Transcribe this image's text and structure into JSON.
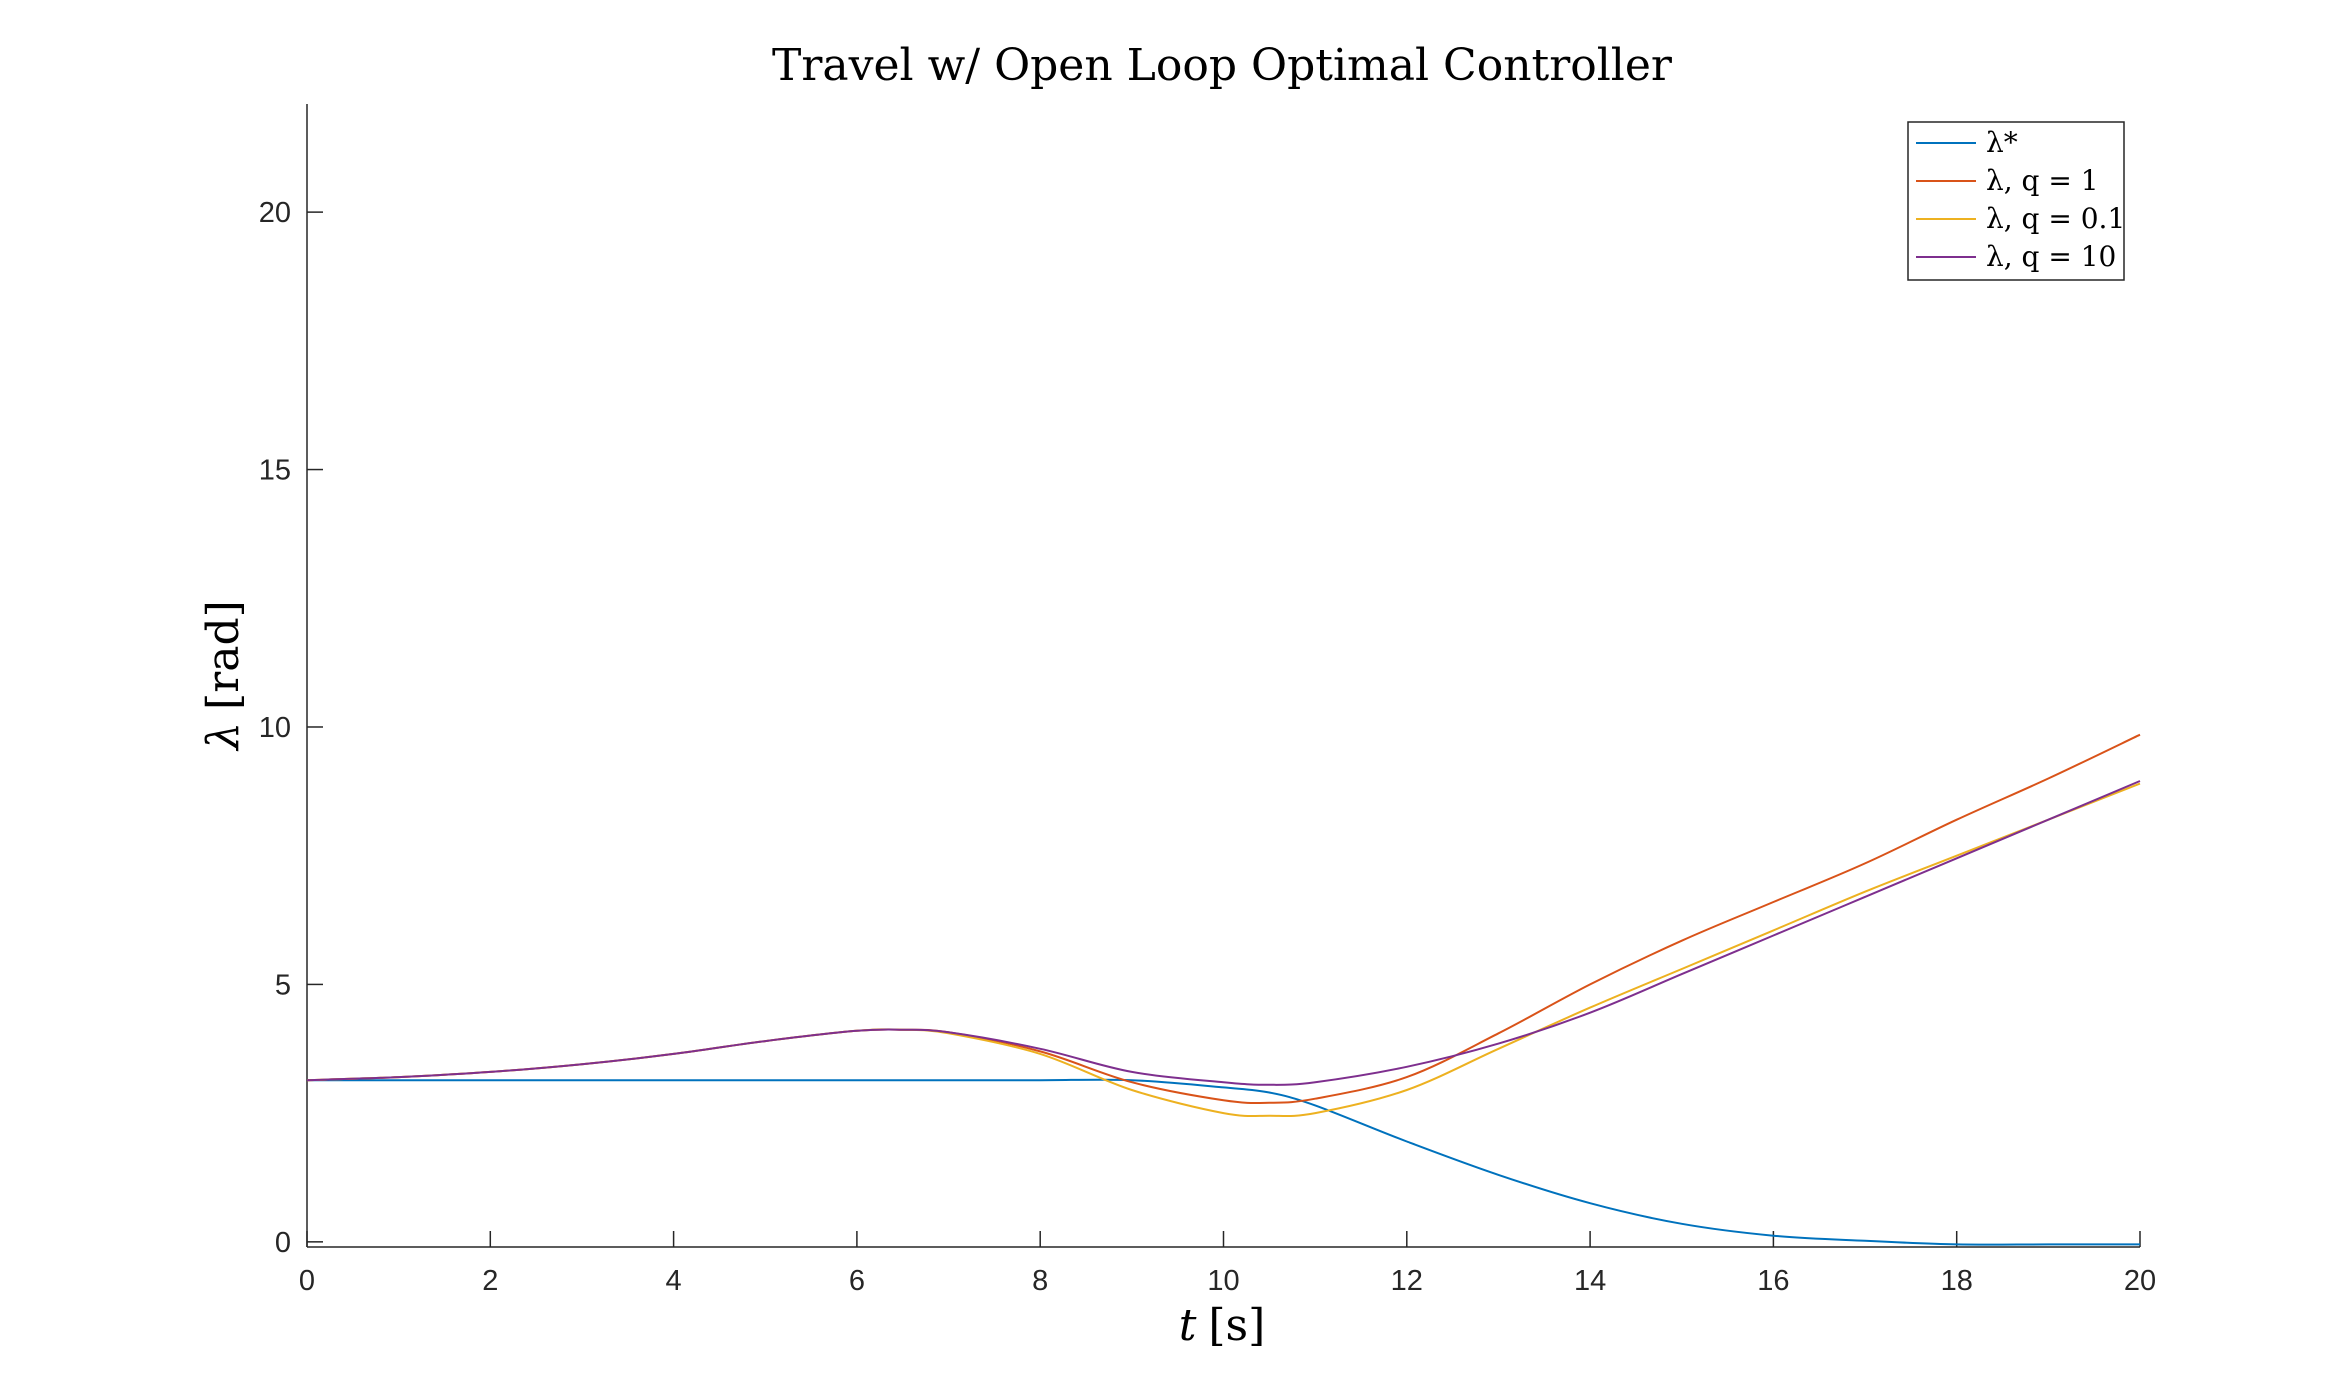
{
  "chart_data": {
    "type": "line",
    "title": "Travel w/ Open Loop Optimal Controller",
    "xlabel_var": "t",
    "xlabel_unit": "[s]",
    "ylabel_var": "λ",
    "ylabel_unit": "[rad]",
    "xlim": [
      0,
      20
    ],
    "ylim": [
      -0.1,
      22.1
    ],
    "xticks": [
      0,
      2,
      4,
      6,
      8,
      10,
      12,
      14,
      16,
      18,
      20
    ],
    "yticks": [
      0,
      5,
      10,
      15,
      20
    ],
    "grid": false,
    "legend_position": "top-right",
    "x": [
      0,
      1,
      2,
      3,
      4,
      5,
      6,
      6.5,
      7,
      8,
      9,
      10,
      10.5,
      11,
      12,
      13,
      14,
      15,
      16,
      17,
      18,
      19,
      20
    ],
    "series": [
      {
        "name": "λ*",
        "color": "#0072BD",
        "values": [
          3.14,
          3.14,
          3.14,
          3.14,
          3.14,
          3.14,
          3.14,
          3.14,
          3.14,
          3.14,
          3.14,
          3.0,
          2.9,
          2.65,
          1.95,
          1.3,
          0.75,
          0.35,
          0.12,
          0.02,
          -0.05,
          -0.05,
          -0.05
        ]
      },
      {
        "name": "λ, q = 1",
        "color": "#D95319",
        "values": [
          3.14,
          3.2,
          3.3,
          3.45,
          3.65,
          3.9,
          4.1,
          4.12,
          4.07,
          3.7,
          3.1,
          2.75,
          2.7,
          2.78,
          3.2,
          4.05,
          5.0,
          5.85,
          6.6,
          7.35,
          8.2,
          9.0,
          9.85
        ]
      },
      {
        "name": "λ, q = 0.1",
        "color": "#EDB120",
        "values": [
          3.14,
          3.2,
          3.3,
          3.45,
          3.65,
          3.9,
          4.1,
          4.12,
          4.05,
          3.65,
          2.95,
          2.5,
          2.45,
          2.5,
          2.95,
          3.75,
          4.55,
          5.3,
          6.05,
          6.8,
          7.5,
          8.2,
          8.9
        ]
      },
      {
        "name": "λ, q = 10",
        "color": "#7E2F8E",
        "values": [
          3.14,
          3.2,
          3.3,
          3.45,
          3.65,
          3.9,
          4.1,
          4.12,
          4.07,
          3.75,
          3.3,
          3.1,
          3.05,
          3.1,
          3.4,
          3.85,
          4.45,
          5.2,
          5.95,
          6.7,
          7.45,
          8.2,
          8.95
        ]
      }
    ]
  }
}
